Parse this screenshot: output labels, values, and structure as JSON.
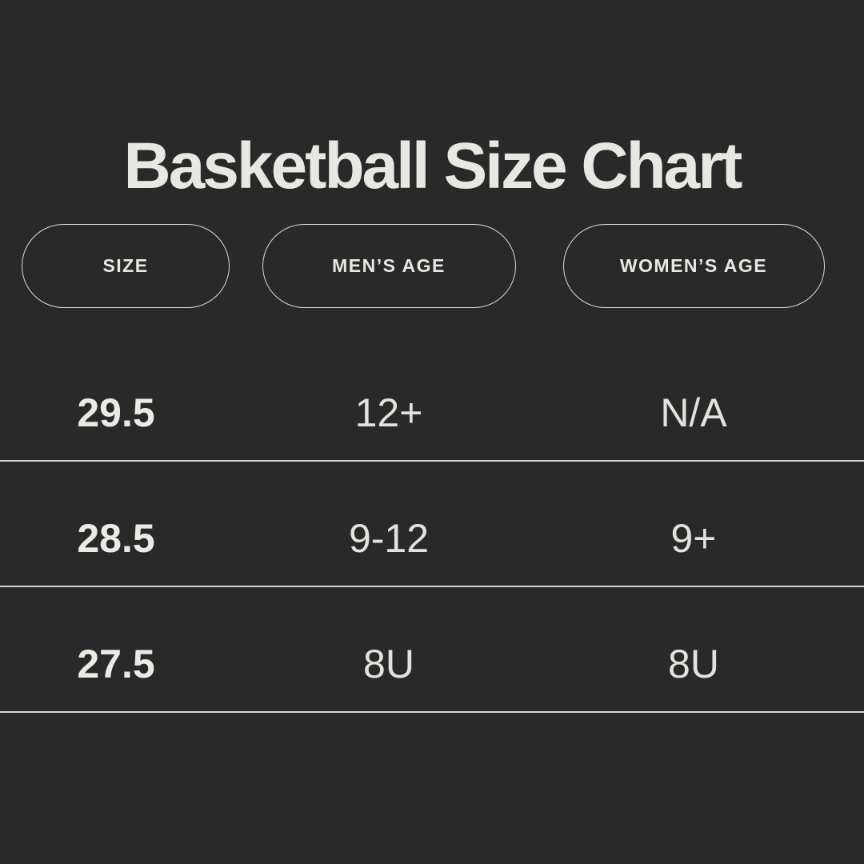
{
  "title": "Basketball Size Chart",
  "theme": {
    "background": "#2A2929",
    "text": "#E9E7E2",
    "line": "#D8D6D1"
  },
  "table": {
    "headers": [
      {
        "label": "SIZE"
      },
      {
        "label": "MEN’S AGE"
      },
      {
        "label": "WOMEN’S AGE"
      }
    ],
    "rows": [
      {
        "size": "29.5",
        "mens_age": "12+",
        "womens_age": "N/A"
      },
      {
        "size": "28.5",
        "mens_age": "9-12",
        "womens_age": "9+"
      },
      {
        "size": "27.5",
        "mens_age": "8U",
        "womens_age": "8U"
      }
    ]
  },
  "chart_data": {
    "type": "table",
    "title": "Basketball Size Chart",
    "columns": [
      "SIZE",
      "MEN’S AGE",
      "WOMEN’S AGE"
    ],
    "rows": [
      [
        "29.5",
        "12+",
        "N/A"
      ],
      [
        "28.5",
        "9-12",
        "9+"
      ],
      [
        "27.5",
        "8U",
        "8U"
      ]
    ]
  }
}
